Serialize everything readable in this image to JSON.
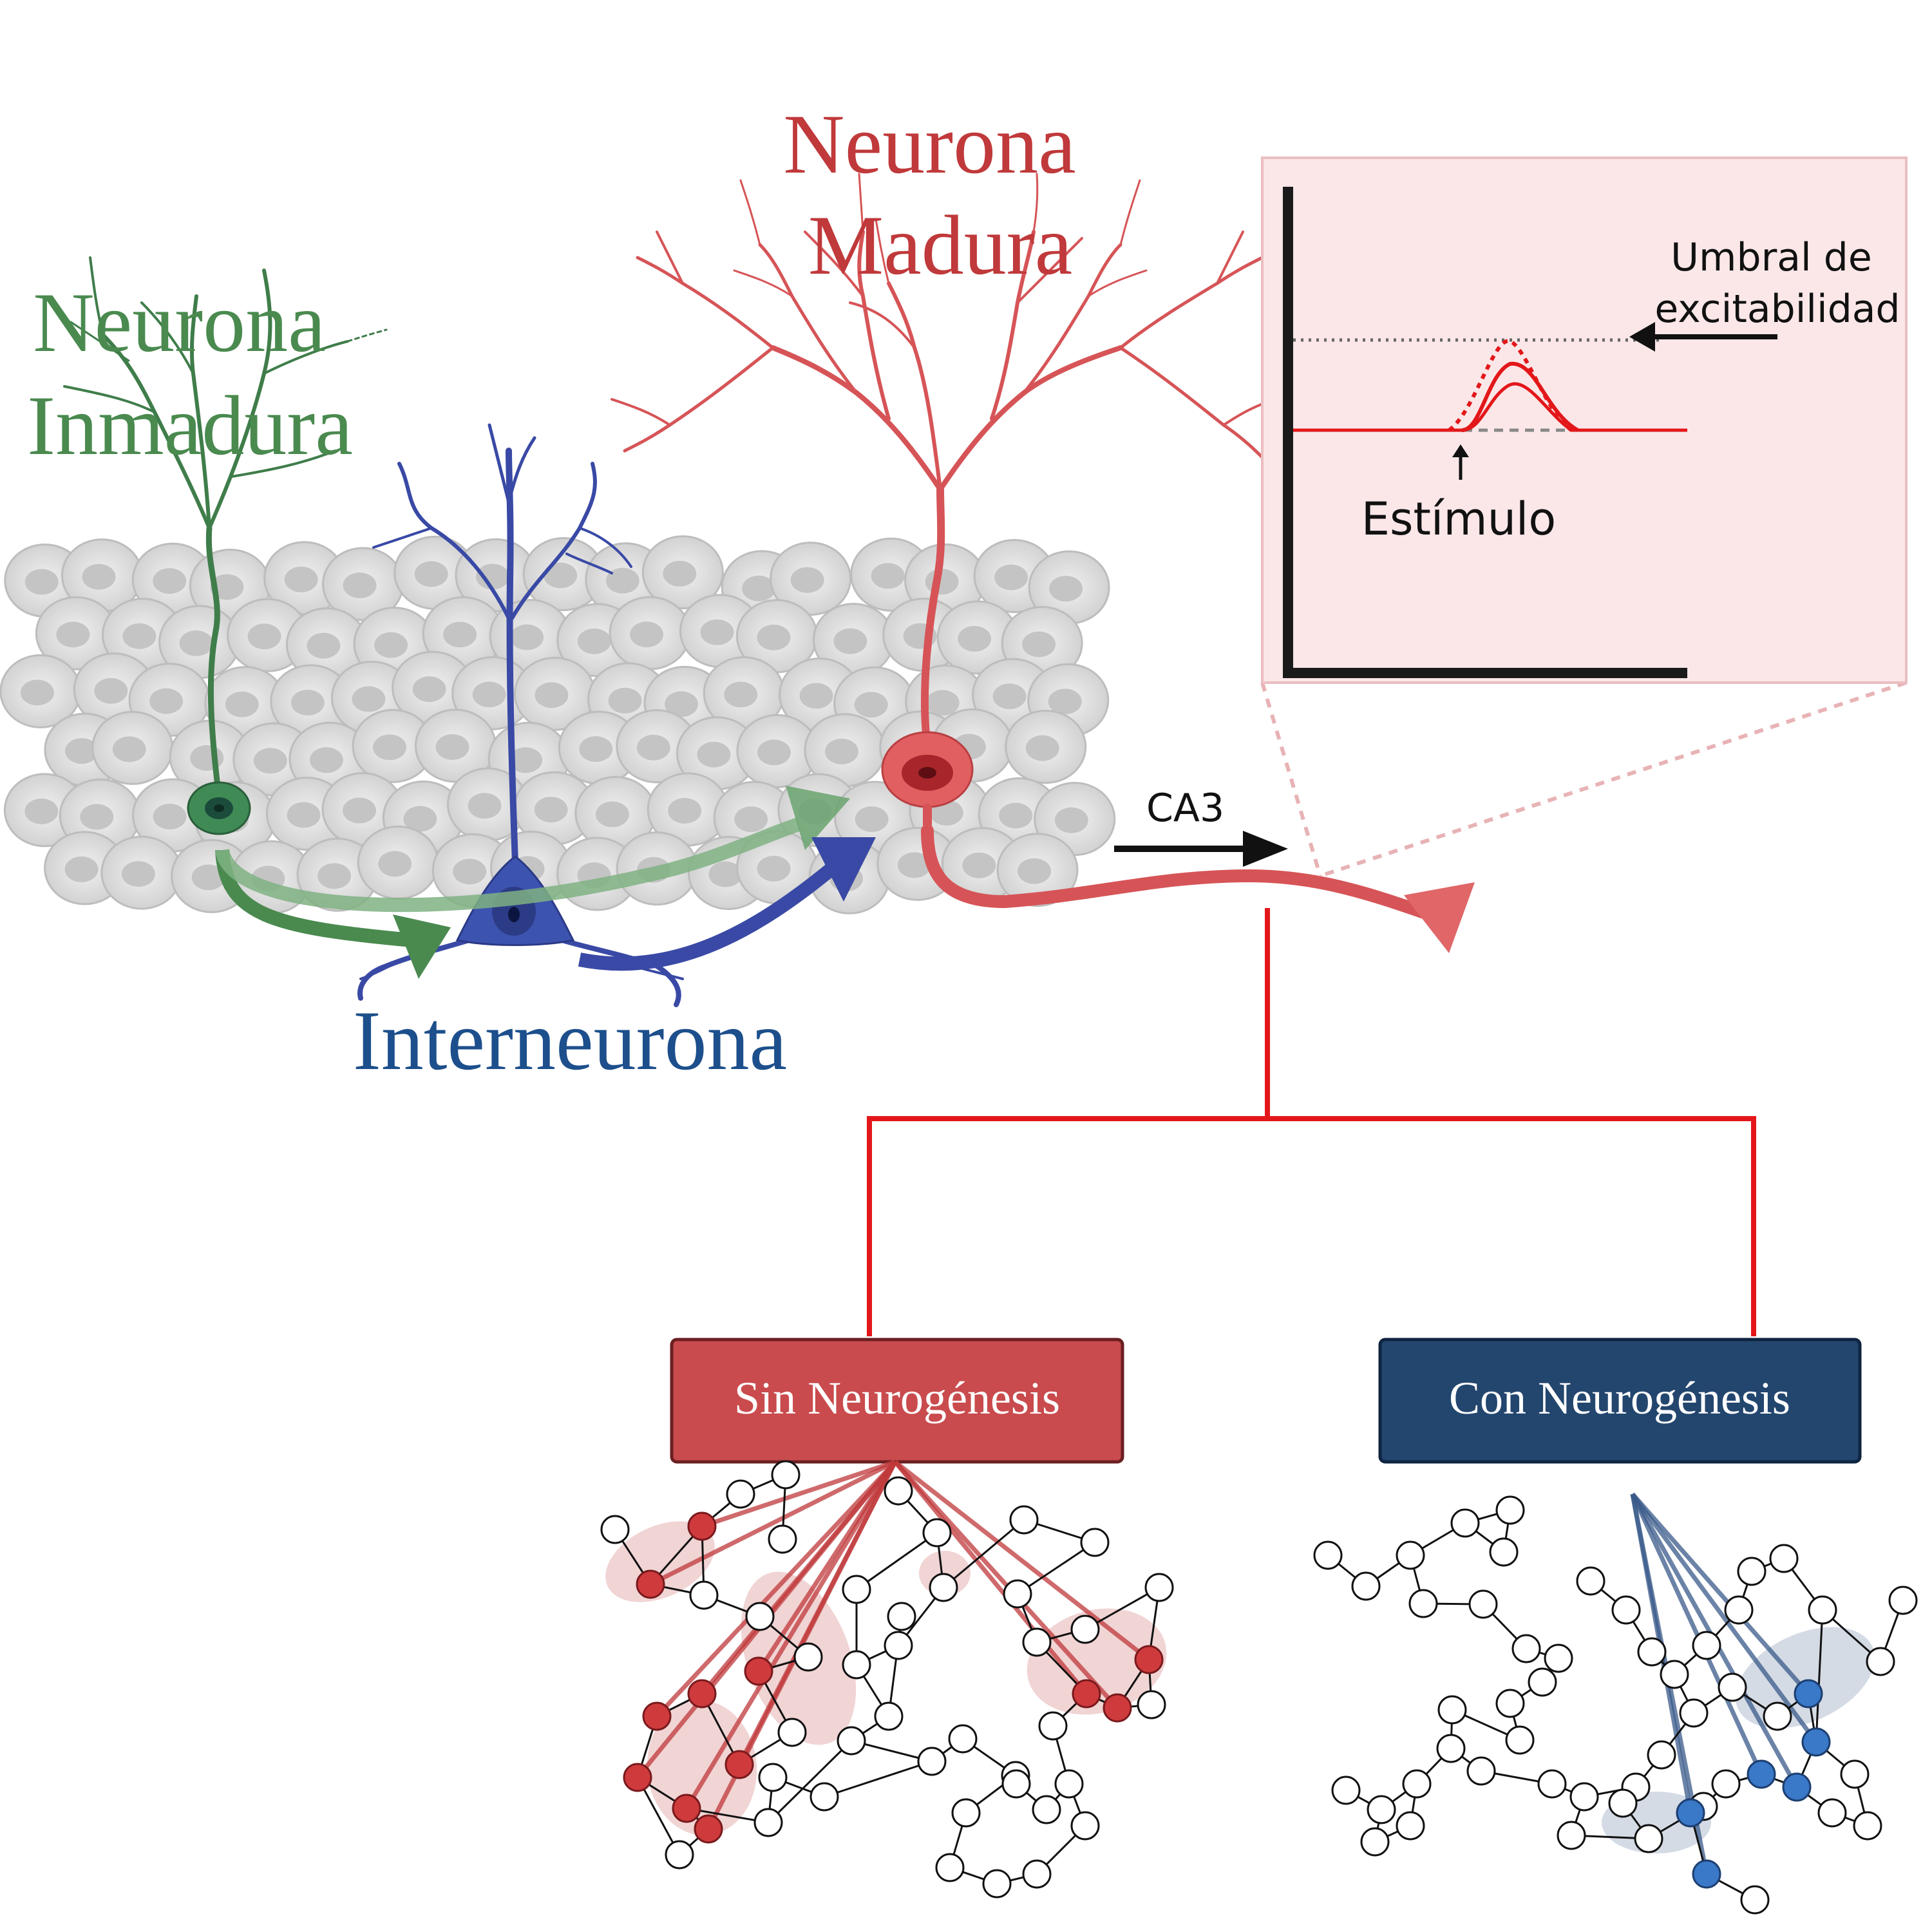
{
  "labels": {
    "mature_neuron": [
      "Neurona",
      "Madura"
    ],
    "immature_neuron": [
      "Neurona",
      "Inmadura"
    ],
    "interneuron": "Interneurona",
    "ca3": "CA3",
    "threshold": [
      "Umbral de",
      "excitabilidad"
    ],
    "stimulus": "Estímulo"
  },
  "boxes": {
    "without": "Sin Neurogénesis",
    "with": "Con Neurogénesis"
  },
  "colors": {
    "mature": "#c0393b",
    "immature": "#4a8a4f",
    "interneuron": "#1c4f8c",
    "red_line": "#e3171a",
    "box_red": "#c94b4d",
    "box_blue": "#23466e",
    "node_red": "#cf3b3d",
    "node_blue": "#3a78c8"
  }
}
